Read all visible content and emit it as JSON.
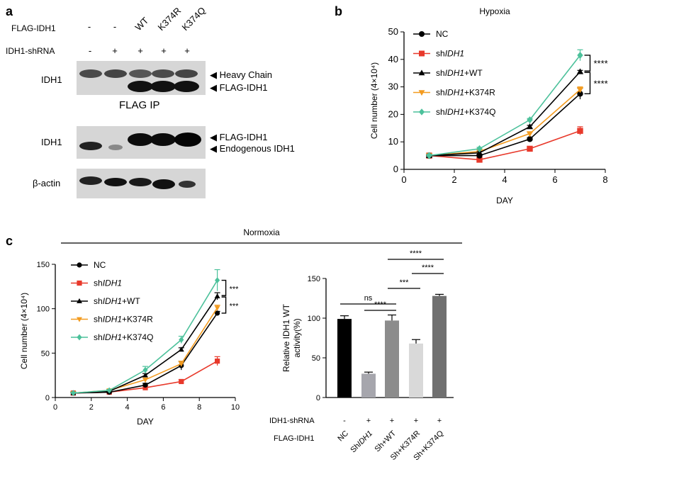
{
  "panel_a": {
    "letter": "a",
    "row_labels": [
      "FLAG-IDH1",
      "IDH1-shRNA"
    ],
    "lane_headers": [
      "-",
      "-",
      "WT",
      "K374R",
      "K374Q"
    ],
    "shrna_signs": [
      "-",
      "+",
      "+",
      "+",
      "+"
    ],
    "blots": [
      {
        "label": "IDH1",
        "bands": [
          "Heavy Chain",
          "FLAG-IDH1"
        ],
        "caption": "FLAG IP"
      },
      {
        "label": "IDH1",
        "bands": [
          "FLAG-IDH1",
          "Endogenous IDH1"
        ]
      },
      {
        "label": "β-actin",
        "bands": []
      }
    ]
  },
  "legend_series": [
    {
      "name": "NC",
      "prefix": "NC",
      "italic": "",
      "suffix": "",
      "color": "#000000",
      "marker": "circle"
    },
    {
      "name": "shIDH1",
      "prefix": "sh",
      "italic": "IDH1",
      "suffix": "",
      "color": "#e8392b",
      "marker": "square"
    },
    {
      "name": "shIDH1+WT",
      "prefix": "sh",
      "italic": "IDH1",
      "suffix": "+WT",
      "color": "#000000",
      "marker": "triangle"
    },
    {
      "name": "shIDH1+K374R",
      "prefix": "sh",
      "italic": "IDH1",
      "suffix": "+K374R",
      "color": "#f39b1f",
      "marker": "triangle-down"
    },
    {
      "name": "shIDH1+K374Q",
      "prefix": "sh",
      "italic": "IDH1",
      "suffix": "+K374Q",
      "color": "#4cc19b",
      "marker": "diamond"
    }
  ],
  "panel_b_letter": "b",
  "panel_c_letter": "c",
  "normoxia_label": "Normoxia",
  "chart_data": [
    {
      "id": "hypoxia",
      "type": "line",
      "title": "Hypoxia",
      "xlabel": "DAY",
      "ylabel": "Cell number (4×10⁴)",
      "xlim": [
        0,
        8
      ],
      "xticks": [
        0,
        2,
        4,
        6,
        8
      ],
      "ylim": [
        0,
        50
      ],
      "yticks": [
        0,
        10,
        20,
        30,
        40,
        50
      ],
      "x": [
        1,
        3,
        5,
        7
      ],
      "series": [
        {
          "name": "NC",
          "values": [
            5,
            5,
            11,
            27.5
          ],
          "errors": [
            0.5,
            0.5,
            0.5,
            2
          ]
        },
        {
          "name": "shIDH1",
          "values": [
            5,
            3.5,
            7.5,
            14
          ],
          "errors": [
            0.5,
            0.5,
            0.8,
            1.5
          ]
        },
        {
          "name": "shIDH1+WT",
          "values": [
            5,
            6,
            15.5,
            35.5
          ],
          "errors": [
            0.5,
            0.5,
            0.5,
            0.5
          ]
        },
        {
          "name": "shIDH1+K374R",
          "values": [
            5,
            6.5,
            13,
            29
          ],
          "errors": [
            0.5,
            0.5,
            0.5,
            1
          ]
        },
        {
          "name": "shIDH1+K374Q",
          "values": [
            5,
            7.5,
            18,
            41.5
          ],
          "errors": [
            0.5,
            0.5,
            0.5,
            2
          ]
        }
      ],
      "significance": [
        "****",
        "****"
      ]
    },
    {
      "id": "normoxia",
      "type": "line",
      "title": "Normoxia",
      "xlabel": "DAY",
      "ylabel": "Cell number  (4×10⁴)",
      "xlim": [
        0,
        10
      ],
      "xticks": [
        0,
        2,
        4,
        6,
        8,
        10
      ],
      "ylim": [
        0,
        150
      ],
      "yticks": [
        0,
        50,
        100,
        150
      ],
      "x": [
        1,
        3,
        5,
        7,
        9
      ],
      "series": [
        {
          "name": "NC",
          "values": [
            5,
            6,
            14,
            36,
            95
          ],
          "errors": [
            1,
            1,
            2,
            5,
            2
          ]
        },
        {
          "name": "shIDH1",
          "values": [
            5,
            6,
            11,
            18,
            41
          ],
          "errors": [
            1,
            1,
            2,
            2,
            5
          ]
        },
        {
          "name": "shIDH1+WT",
          "values": [
            5,
            7,
            25,
            54,
            114
          ],
          "errors": [
            1,
            1,
            2,
            2,
            4
          ]
        },
        {
          "name": "shIDH1+K374R",
          "values": [
            5,
            8,
            20,
            38,
            101
          ],
          "errors": [
            1,
            1,
            2,
            3,
            3
          ]
        },
        {
          "name": "shIDH1+K374Q",
          "values": [
            5,
            8,
            31,
            65,
            132
          ],
          "errors": [
            1,
            1,
            4,
            4,
            12
          ]
        }
      ],
      "significance": [
        "***",
        "***"
      ]
    },
    {
      "id": "activity",
      "type": "bar",
      "xlabel": "",
      "ylabel": "Relative IDH1 WT activity(%)",
      "ylim": [
        0,
        150
      ],
      "yticks": [
        0,
        50,
        100,
        150
      ],
      "categories": [
        "NC",
        "ShIDH1",
        "Sh+WT",
        "Sh+K374R",
        "Sh+K374Q"
      ],
      "category_parts": [
        [
          "NC",
          ""
        ],
        [
          "Sh",
          "IDH1"
        ],
        [
          "Sh+WT",
          ""
        ],
        [
          "Sh+K374R",
          ""
        ],
        [
          "Sh+K374Q",
          ""
        ]
      ],
      "values": [
        99,
        30,
        97,
        68,
        128
      ],
      "errors": [
        4,
        2,
        7,
        5,
        2
      ],
      "colors": [
        "#000000",
        "#a6a6ad",
        "#8c8c8c",
        "#d9d9d9",
        "#707070"
      ],
      "row_labels": [
        "IDH1-shRNA",
        "FLAG-IDH1"
      ],
      "shrna_signs": [
        "-",
        "+",
        "+",
        "+",
        "+"
      ],
      "comparisons": [
        {
          "from": 0,
          "to": 2,
          "label": "ns"
        },
        {
          "from": 1,
          "to": 2,
          "label": "****"
        },
        {
          "from": 2,
          "to": 3,
          "label": "***"
        },
        {
          "from": 3,
          "to": 4,
          "label": "****"
        },
        {
          "from": 2,
          "to": 4,
          "label": "****"
        }
      ]
    }
  ]
}
